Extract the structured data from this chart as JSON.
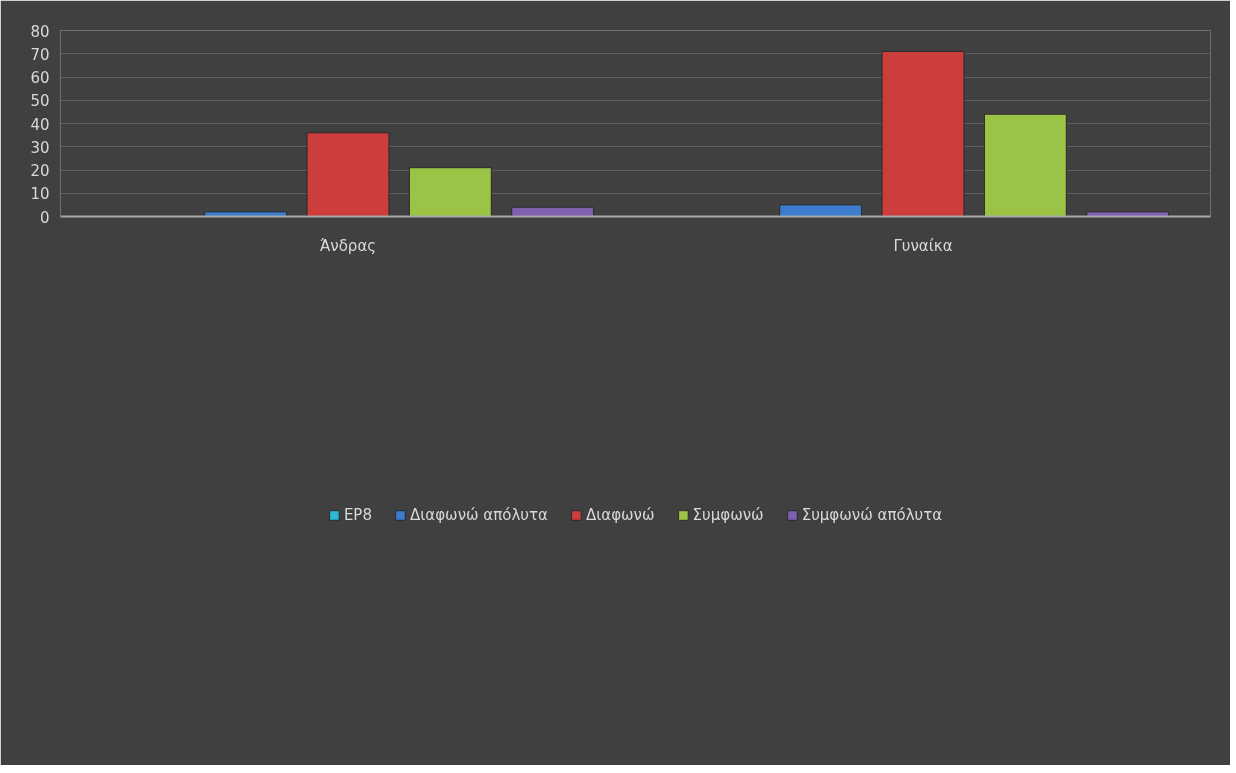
{
  "chart_data": {
    "type": "bar",
    "categories": [
      "Άνδρας",
      "Γυναίκα"
    ],
    "series": [
      {
        "name": "EP8",
        "color": "#2fb6d4",
        "values": [
          null,
          null
        ]
      },
      {
        "name": "Διαφωνώ απόλυτα",
        "color": "#3b7ccc",
        "values": [
          2,
          5
        ]
      },
      {
        "name": "Διαφωνώ",
        "color": "#cc3d3b",
        "values": [
          36,
          71
        ]
      },
      {
        "name": "Συμφωνώ",
        "color": "#9bc447",
        "values": [
          21,
          44
        ]
      },
      {
        "name": "Συμφωνώ απόλυτα",
        "color": "#7f5fb0",
        "values": [
          4,
          2
        ]
      }
    ],
    "ylim": [
      0,
      80
    ],
    "yticks": [
      0,
      10,
      20,
      30,
      40,
      50,
      60,
      70,
      80
    ],
    "grid": "y",
    "legend": "bottom"
  }
}
